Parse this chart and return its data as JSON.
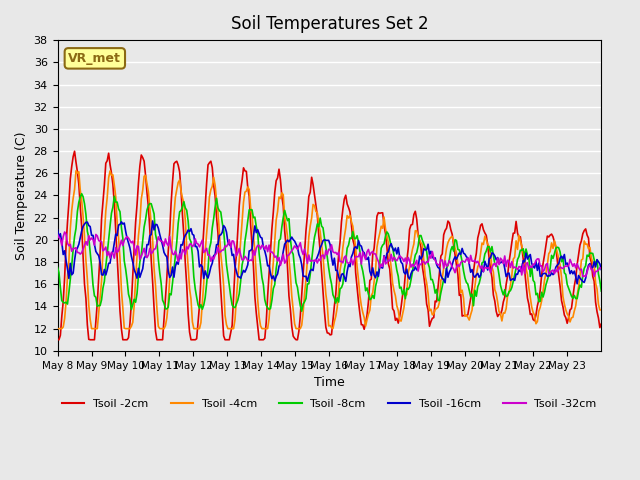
{
  "title": "Soil Temperatures Set 2",
  "xlabel": "Time",
  "ylabel": "Soil Temperature (C)",
  "ylim": [
    10,
    38
  ],
  "yticks": [
    10,
    12,
    14,
    16,
    18,
    20,
    22,
    24,
    26,
    28,
    30,
    32,
    34,
    36,
    38
  ],
  "background_color": "#e8e8e8",
  "plot_bg_color": "#e8e8e8",
  "grid_color": "#ffffff",
  "annotation_text": "VR_met",
  "annotation_bg": "#ffff99",
  "annotation_border": "#8b6914",
  "series": {
    "Tsoil -2cm": {
      "color": "#dd0000",
      "lw": 1.2
    },
    "Tsoil -4cm": {
      "color": "#ff8800",
      "lw": 1.2
    },
    "Tsoil -8cm": {
      "color": "#00cc00",
      "lw": 1.2
    },
    "Tsoil -16cm": {
      "color": "#0000cc",
      "lw": 1.2
    },
    "Tsoil -32cm": {
      "color": "#cc00cc",
      "lw": 1.2
    }
  },
  "xtick_labels": [
    "May 8",
    "May 9",
    "May 10",
    "May 11",
    "May 12",
    "May 13",
    "May 14",
    "May 15",
    "May 16",
    "May 17",
    "May 18",
    "May 19",
    "May 20",
    "May 21",
    "May 22",
    "May 23"
  ],
  "n_days": 16,
  "pts_per_day": 24
}
